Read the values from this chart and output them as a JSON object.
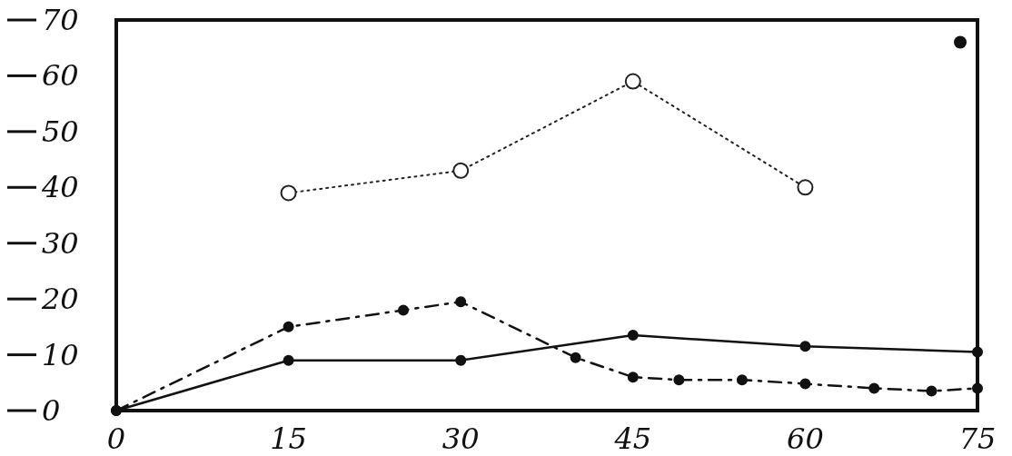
{
  "chart_data": {
    "type": "line",
    "xlim": [
      0,
      75
    ],
    "ylim": [
      0,
      70
    ],
    "xticks": [
      0,
      15,
      30,
      45,
      60,
      75
    ],
    "yticks": [
      0,
      10,
      20,
      30,
      40,
      50,
      60,
      70
    ],
    "grid": false,
    "series": [
      {
        "color": "#222222",
        "line_style": "dotted",
        "marker": "circle",
        "x": [
          15,
          30,
          45,
          60
        ],
        "values": [
          39,
          43,
          59,
          40
        ]
      },
      {
        "color": "#111111",
        "line_style": "solid",
        "marker": "circle",
        "x": [
          0,
          15,
          30,
          45,
          60,
          75
        ],
        "values": [
          0,
          9,
          9,
          13.5,
          11.5,
          10.5
        ]
      },
      {
        "color": "#111111",
        "line_style": "dashed",
        "marker": "circle",
        "x": [
          0,
          15,
          25,
          30,
          40,
          45,
          49,
          54.5,
          60,
          66,
          71,
          75
        ],
        "values": [
          0,
          15,
          18,
          19.5,
          9.5,
          6,
          5.5,
          5.5,
          4.8,
          4,
          3.5,
          4
        ]
      },
      {
        "type": "scatter",
        "color": "#111111",
        "marker": "circle",
        "x": [
          73.5
        ],
        "values": [
          66
        ]
      }
    ]
  }
}
